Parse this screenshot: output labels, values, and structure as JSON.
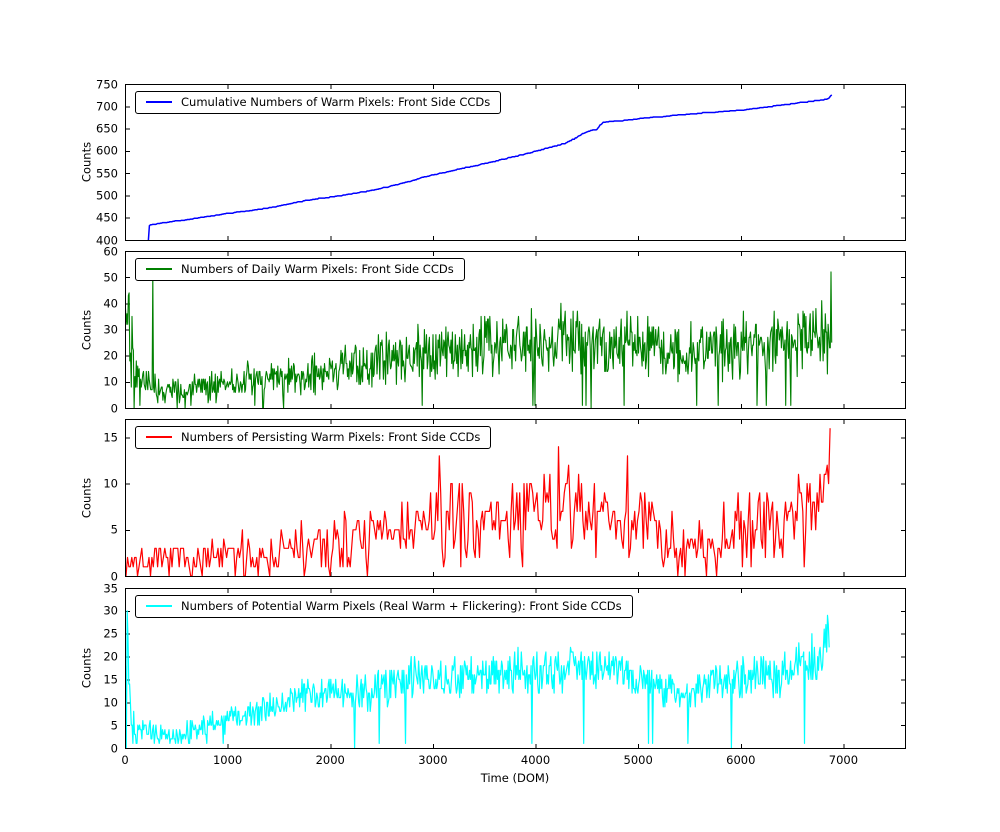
{
  "figure": {
    "background": "#ffffff",
    "frame_color": "#000000",
    "text_color": "#000000",
    "xlabel": "Time (DOM)",
    "xlim": [
      0,
      7600
    ],
    "xticks": [
      0,
      1000,
      2000,
      3000,
      4000,
      5000,
      6000,
      7000
    ],
    "grid": false,
    "legend_position": "upper left"
  },
  "chart_data": [
    {
      "id": "cumulative-warm-pixels",
      "type": "line",
      "legend": "Cumulative Numbers of Warm Pixels: Front Side CCDs",
      "color": "#0000ff",
      "ylabel": "Counts",
      "ylim": [
        400,
        750
      ],
      "yticks": [
        400,
        450,
        500,
        550,
        600,
        650,
        700,
        750
      ],
      "style": "cumulative",
      "x_range": [
        228,
        6890
      ],
      "dx": 10,
      "noise_amp": 1.0,
      "seed": 3,
      "line_width": 1.5,
      "trend": [
        [
          228,
          400
        ],
        [
          231,
          433
        ],
        [
          300,
          436
        ],
        [
          400,
          439
        ],
        [
          500,
          442
        ],
        [
          600,
          445
        ],
        [
          700,
          449
        ],
        [
          800,
          452
        ],
        [
          900,
          456
        ],
        [
          1000,
          459
        ],
        [
          1100,
          462
        ],
        [
          1200,
          465
        ],
        [
          1300,
          468
        ],
        [
          1400,
          472
        ],
        [
          1500,
          476
        ],
        [
          1600,
          481
        ],
        [
          1700,
          486
        ],
        [
          1800,
          490
        ],
        [
          1900,
          493
        ],
        [
          2000,
          496
        ],
        [
          2100,
          499
        ],
        [
          2200,
          503
        ],
        [
          2300,
          507
        ],
        [
          2400,
          511
        ],
        [
          2500,
          516
        ],
        [
          2600,
          521
        ],
        [
          2700,
          527
        ],
        [
          2800,
          533
        ],
        [
          2900,
          540
        ],
        [
          3000,
          546
        ],
        [
          3100,
          551
        ],
        [
          3200,
          556
        ],
        [
          3300,
          561
        ],
        [
          3400,
          566
        ],
        [
          3500,
          571
        ],
        [
          3600,
          576
        ],
        [
          3700,
          582
        ],
        [
          3800,
          588
        ],
        [
          3900,
          593
        ],
        [
          4000,
          599
        ],
        [
          4100,
          605
        ],
        [
          4200,
          611
        ],
        [
          4300,
          618
        ],
        [
          4350,
          624
        ],
        [
          4400,
          630
        ],
        [
          4450,
          637
        ],
        [
          4500,
          643
        ],
        [
          4550,
          646
        ],
        [
          4600,
          648
        ],
        [
          4630,
          658
        ],
        [
          4660,
          664
        ],
        [
          4750,
          666
        ],
        [
          4850,
          668
        ],
        [
          4950,
          670
        ],
        [
          5050,
          673
        ],
        [
          5150,
          675
        ],
        [
          5250,
          677
        ],
        [
          5350,
          679
        ],
        [
          5450,
          681
        ],
        [
          5550,
          683
        ],
        [
          5650,
          685
        ],
        [
          5750,
          686
        ],
        [
          5850,
          688
        ],
        [
          5950,
          690
        ],
        [
          6050,
          692
        ],
        [
          6150,
          695
        ],
        [
          6250,
          698
        ],
        [
          6350,
          701
        ],
        [
          6450,
          704
        ],
        [
          6550,
          707
        ],
        [
          6650,
          710
        ],
        [
          6750,
          713
        ],
        [
          6820,
          715
        ],
        [
          6860,
          718
        ],
        [
          6875,
          723
        ],
        [
          6890,
          725
        ]
      ]
    },
    {
      "id": "daily-warm-pixels",
      "type": "line",
      "legend": "Numbers of Daily Warm Pixels: Front Side CCDs",
      "color": "#008000",
      "ylabel": "Counts",
      "ylim": [
        0,
        60
      ],
      "yticks": [
        0,
        10,
        20,
        30,
        40,
        50,
        60
      ],
      "style": "noisy",
      "x_range": [
        5,
        6890
      ],
      "dx": 7,
      "dropout": 0.02,
      "quantize": true,
      "seed": 42,
      "line_width": 1.1,
      "spikes": [
        [
          272,
          52
        ],
        [
          6876,
          52
        ]
      ],
      "trend": [
        [
          0,
          35
        ],
        [
          30,
          42
        ],
        [
          60,
          30
        ],
        [
          90,
          15
        ],
        [
          150,
          10
        ],
        [
          250,
          8
        ],
        [
          400,
          6
        ],
        [
          600,
          6
        ],
        [
          800,
          8
        ],
        [
          1000,
          9
        ],
        [
          1200,
          10
        ],
        [
          1400,
          11
        ],
        [
          1600,
          12
        ],
        [
          1800,
          13
        ],
        [
          2000,
          14
        ],
        [
          2200,
          16
        ],
        [
          2400,
          17
        ],
        [
          2600,
          19
        ],
        [
          2800,
          21
        ],
        [
          3000,
          22
        ],
        [
          3200,
          22
        ],
        [
          3400,
          23
        ],
        [
          3600,
          24
        ],
        [
          3800,
          24
        ],
        [
          4000,
          25
        ],
        [
          4200,
          26
        ],
        [
          4400,
          26
        ],
        [
          4600,
          25
        ],
        [
          4800,
          25
        ],
        [
          5000,
          24
        ],
        [
          5200,
          23
        ],
        [
          5400,
          21
        ],
        [
          5600,
          22
        ],
        [
          5800,
          23
        ],
        [
          6000,
          24
        ],
        [
          6200,
          24
        ],
        [
          6400,
          25
        ],
        [
          6600,
          25
        ],
        [
          6800,
          26
        ],
        [
          6890,
          28
        ]
      ],
      "amp": [
        [
          0,
          22
        ],
        [
          60,
          20
        ],
        [
          100,
          8
        ],
        [
          200,
          5
        ],
        [
          400,
          4
        ],
        [
          800,
          4.5
        ],
        [
          1200,
          5
        ],
        [
          1600,
          5.5
        ],
        [
          2000,
          6
        ],
        [
          2400,
          7
        ],
        [
          2800,
          8
        ],
        [
          3200,
          8
        ],
        [
          3600,
          9
        ],
        [
          4000,
          9
        ],
        [
          4400,
          10
        ],
        [
          4800,
          9
        ],
        [
          5200,
          8
        ],
        [
          5600,
          8
        ],
        [
          6000,
          9
        ],
        [
          6400,
          9
        ],
        [
          6890,
          10
        ]
      ]
    },
    {
      "id": "persisting-warm-pixels",
      "type": "line",
      "legend": "Numbers of Persisting Warm Pixels: Front Side CCDs",
      "color": "#ff0000",
      "ylabel": "Counts",
      "ylim": [
        0,
        17
      ],
      "yticks": [
        0,
        5,
        10,
        15
      ],
      "style": "noisy",
      "x_range": [
        10,
        6880
      ],
      "dx": 14,
      "dropout": 0.015,
      "quantize": true,
      "seed": 7,
      "line_width": 1.2,
      "spikes": [
        [
          3055,
          13
        ],
        [
          4230,
          14
        ],
        [
          4900,
          13
        ],
        [
          6868,
          16
        ]
      ],
      "trend": [
        [
          0,
          1.5
        ],
        [
          300,
          1.5
        ],
        [
          600,
          1.6
        ],
        [
          900,
          2
        ],
        [
          1200,
          2.2
        ],
        [
          1500,
          2.6
        ],
        [
          1800,
          3
        ],
        [
          2100,
          3.5
        ],
        [
          2400,
          4
        ],
        [
          2700,
          5
        ],
        [
          3000,
          5.5
        ],
        [
          3300,
          6
        ],
        [
          3600,
          6
        ],
        [
          3900,
          6.5
        ],
        [
          4200,
          7
        ],
        [
          4500,
          7
        ],
        [
          4800,
          6.5
        ],
        [
          5100,
          5.5
        ],
        [
          5300,
          4
        ],
        [
          5500,
          3.2
        ],
        [
          5700,
          4
        ],
        [
          5900,
          5
        ],
        [
          6100,
          5.5
        ],
        [
          6300,
          6
        ],
        [
          6500,
          7
        ],
        [
          6700,
          8
        ],
        [
          6820,
          9
        ],
        [
          6880,
          12
        ]
      ],
      "amp": [
        [
          0,
          1.4
        ],
        [
          600,
          1.4
        ],
        [
          1200,
          1.8
        ],
        [
          1800,
          2.2
        ],
        [
          2400,
          2.8
        ],
        [
          3000,
          3.2
        ],
        [
          3600,
          3.4
        ],
        [
          4200,
          3.8
        ],
        [
          4800,
          3.4
        ],
        [
          5300,
          2.4
        ],
        [
          5700,
          2.8
        ],
        [
          6300,
          3.2
        ],
        [
          6880,
          3.6
        ]
      ]
    },
    {
      "id": "potential-warm-pixels",
      "type": "line",
      "legend": "Numbers of Potential Warm Pixels (Real Warm + Flickering): Front Side CCDs",
      "color": "#00ffff",
      "ylabel": "Counts",
      "ylim": [
        0,
        35
      ],
      "yticks": [
        0,
        5,
        10,
        15,
        20,
        25,
        30,
        35
      ],
      "style": "noisy",
      "x_range": [
        5,
        6862
      ],
      "dx": 8,
      "dropout": 0.008,
      "quantize": true,
      "seed": 13,
      "line_width": 1.2,
      "spikes": [
        [
          20,
          30
        ],
        [
          6845,
          29
        ]
      ],
      "trend": [
        [
          0,
          18
        ],
        [
          25,
          22
        ],
        [
          50,
          10
        ],
        [
          100,
          5
        ],
        [
          200,
          3.5
        ],
        [
          400,
          2.5
        ],
        [
          600,
          3
        ],
        [
          800,
          5
        ],
        [
          1000,
          6.5
        ],
        [
          1200,
          7.5
        ],
        [
          1400,
          8.5
        ],
        [
          1600,
          10
        ],
        [
          1800,
          11.5
        ],
        [
          2000,
          12
        ],
        [
          2200,
          12
        ],
        [
          2400,
          12.5
        ],
        [
          2600,
          14
        ],
        [
          2800,
          15.5
        ],
        [
          3000,
          16
        ],
        [
          3200,
          15
        ],
        [
          3400,
          15.5
        ],
        [
          3600,
          16
        ],
        [
          3800,
          16.5
        ],
        [
          4000,
          17
        ],
        [
          4200,
          17.5
        ],
        [
          4400,
          18
        ],
        [
          4600,
          17.5
        ],
        [
          4800,
          17
        ],
        [
          5000,
          15.5
        ],
        [
          5200,
          13
        ],
        [
          5400,
          11.5
        ],
        [
          5600,
          13
        ],
        [
          5800,
          14.5
        ],
        [
          6000,
          15.5
        ],
        [
          6200,
          16
        ],
        [
          6400,
          16.5
        ],
        [
          6600,
          18
        ],
        [
          6800,
          20
        ],
        [
          6860,
          24
        ]
      ],
      "amp": [
        [
          0,
          8
        ],
        [
          50,
          5
        ],
        [
          150,
          2
        ],
        [
          400,
          1.5
        ],
        [
          800,
          2
        ],
        [
          1200,
          2.4
        ],
        [
          1800,
          3
        ],
        [
          2400,
          3.2
        ],
        [
          3000,
          3.4
        ],
        [
          3600,
          3.4
        ],
        [
          4200,
          3.8
        ],
        [
          4800,
          3.4
        ],
        [
          5400,
          2.8
        ],
        [
          6000,
          3.2
        ],
        [
          6600,
          3.8
        ],
        [
          6860,
          4.5
        ]
      ]
    }
  ]
}
